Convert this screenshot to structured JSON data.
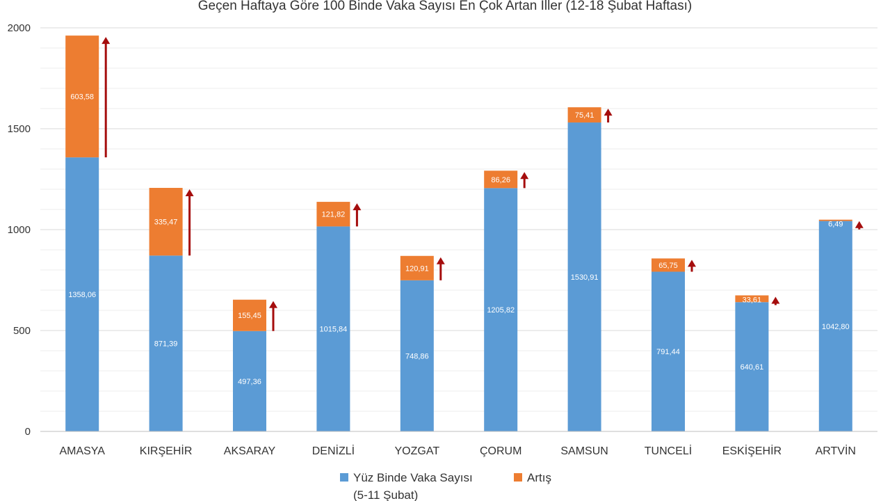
{
  "chart_data": {
    "type": "bar",
    "stacked": true,
    "title": "Geçen Haftaya Göre 100 Binde Vaka Sayısı En Çok Artan İller (12-18 Şubat Haftası)",
    "xlabel": "",
    "ylabel": "",
    "ylim": [
      0,
      2000
    ],
    "yticks": [
      0,
      500,
      1000,
      1500,
      2000
    ],
    "grid": true,
    "legend_position": "bottom",
    "categories": [
      "AMASYA",
      "KIRŞEHİR",
      "AKSARAY",
      "DENİZLİ",
      "YOZGAT",
      "ÇORUM",
      "SAMSUN",
      "TUNCELİ",
      "ESKİŞEHİR",
      "ARTVİN"
    ],
    "series": [
      {
        "name": "Yüz Binde Vaka Sayısı",
        "name_line2": "(5-11 Şubat)",
        "color": "#5B9BD5",
        "values": [
          1358.06,
          871.39,
          497.36,
          1015.84,
          748.86,
          1205.82,
          1530.91,
          791.44,
          640.61,
          1042.8
        ],
        "labels": [
          "1358,06",
          "871,39",
          "497,36",
          "1015,84",
          "748,86",
          "1205,82",
          "1530,91",
          "791,44",
          "640,61",
          "1042,80"
        ]
      },
      {
        "name": "Artış",
        "color": "#ED7D31",
        "values": [
          603.58,
          335.47,
          155.45,
          121.82,
          120.91,
          86.26,
          75.41,
          65.75,
          33.61,
          6.49
        ],
        "labels": [
          "603,58",
          "335,47",
          "155,45",
          "121,82",
          "120,91",
          "86,26",
          "75,41",
          "65,75",
          "33,61",
          "6,49"
        ]
      }
    ],
    "arrow_color": "#A50D0D"
  }
}
